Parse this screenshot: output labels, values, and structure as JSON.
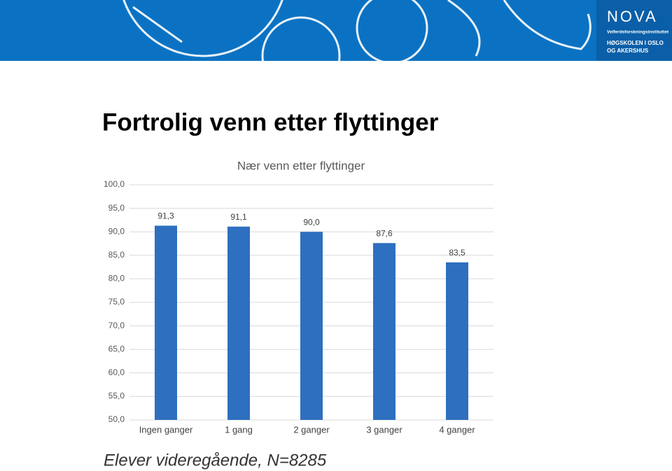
{
  "header": {
    "logo": "NOVA",
    "institute": "Velferdsforskningsinstituttet",
    "school_line1": "HØGSKOLEN I OSLO",
    "school_line2": "OG AKERSHUS"
  },
  "slide_title": "Fortrolig venn etter flyttinger",
  "footnote": "Elever videregående, N=8285",
  "chart_data": {
    "type": "bar",
    "title": "Nær venn etter flyttinger",
    "categories": [
      "Ingen ganger",
      "1 gang",
      "2 ganger",
      "3 ganger",
      "4 ganger"
    ],
    "values": [
      91.3,
      91.1,
      90.0,
      87.6,
      83.5
    ],
    "value_labels": [
      "91,3",
      "91,1",
      "90,0",
      "87,6",
      "83,5"
    ],
    "color": "#2e6fbf",
    "ylim": [
      50,
      100
    ],
    "yticks": [
      {
        "value": 50,
        "label": "50,0"
      },
      {
        "value": 55,
        "label": "55,0"
      },
      {
        "value": 60,
        "label": "60,0"
      },
      {
        "value": 65,
        "label": "65,0"
      },
      {
        "value": 70,
        "label": "70,0"
      },
      {
        "value": 75,
        "label": "75,0"
      },
      {
        "value": 80,
        "label": "80,0"
      },
      {
        "value": 85,
        "label": "85,0"
      },
      {
        "value": 90,
        "label": "90,0"
      },
      {
        "value": 95,
        "label": "95,0"
      },
      {
        "value": 100,
        "label": "100,0"
      }
    ],
    "grid": true
  }
}
